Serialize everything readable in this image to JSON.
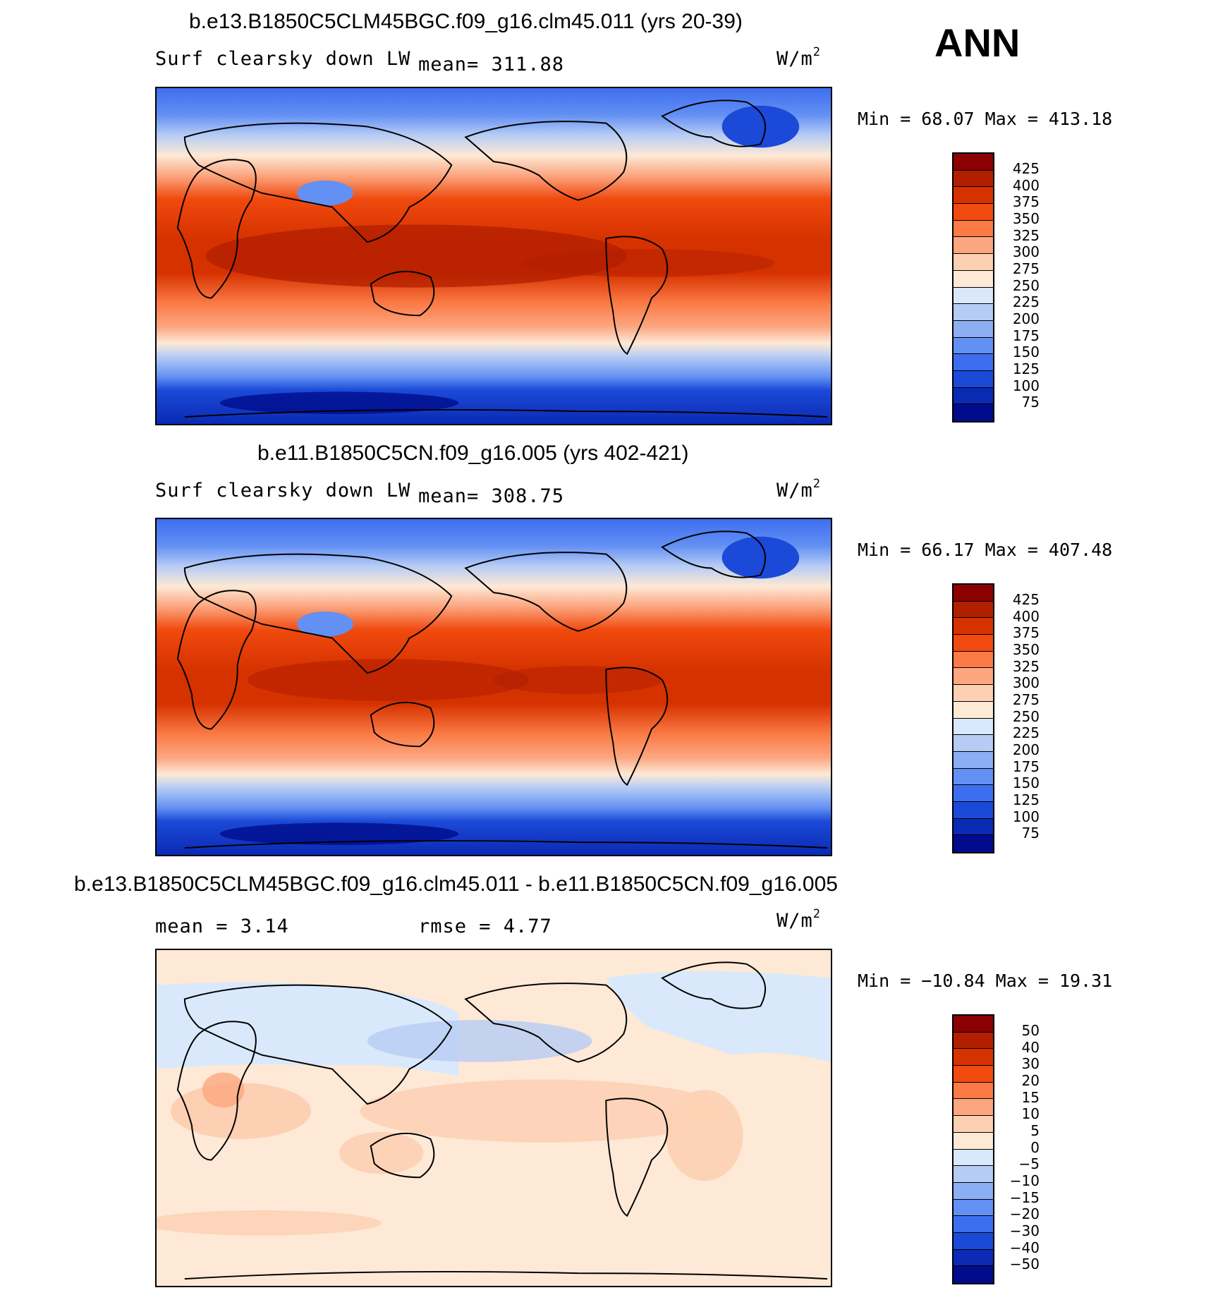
{
  "season": "ANN",
  "panels": [
    {
      "title": "b.e13.B1850C5CLM45BGC.f09_g16.clm45.011 (yrs 20-39)",
      "left_label": "Surf clearsky down LW",
      "center_label": "mean= 311.88",
      "units": "W/m",
      "units_exp": "2",
      "min_max": "Min =   68.07 Max = 413.18",
      "colorbar_labels": [
        "425",
        "400",
        "375",
        "350",
        "325",
        "300",
        "275",
        "250",
        "225",
        "200",
        "175",
        "150",
        "125",
        "100",
        "75"
      ],
      "colorbar_colors": [
        "#8b0000",
        "#b21e00",
        "#d63200",
        "#f04a0e",
        "#fb7a45",
        "#fca680",
        "#fdd0b4",
        "#fde9d6",
        "#d9e9fb",
        "#b6ccf5",
        "#8caef2",
        "#6390f3",
        "#3d6ef0",
        "#1b4ad8",
        "#0a2ab4",
        "#000c8c"
      ]
    },
    {
      "title": "b.e11.B1850C5CN.f09_g16.005 (yrs 402-421)",
      "left_label": "Surf clearsky down LW",
      "center_label": "mean= 308.75",
      "units": "W/m",
      "units_exp": "2",
      "min_max": "Min =   66.17 Max = 407.48",
      "colorbar_labels": [
        "425",
        "400",
        "375",
        "350",
        "325",
        "300",
        "275",
        "250",
        "225",
        "200",
        "175",
        "150",
        "125",
        "100",
        "75"
      ],
      "colorbar_colors": [
        "#8b0000",
        "#b21e00",
        "#d63200",
        "#f04a0e",
        "#fb7a45",
        "#fca680",
        "#fdd0b4",
        "#fde9d6",
        "#d9e9fb",
        "#b6ccf5",
        "#8caef2",
        "#6390f3",
        "#3d6ef0",
        "#1b4ad8",
        "#0a2ab4",
        "#000c8c"
      ]
    },
    {
      "title": "b.e13.B1850C5CLM45BGC.f09_g16.clm45.011 - b.e11.B1850C5CN.f09_g16.005",
      "left_label": "mean =    3.14",
      "center_label": "rmse =    4.77",
      "units": "W/m",
      "units_exp": "2",
      "min_max": "Min = −10.84 Max =   19.31",
      "colorbar_labels": [
        "50",
        "40",
        "30",
        "20",
        "15",
        "10",
        "5",
        "0",
        "−5",
        "−10",
        "−15",
        "−20",
        "−30",
        "−40",
        "−50"
      ],
      "colorbar_colors": [
        "#8b0000",
        "#b21e00",
        "#d63200",
        "#f04a0e",
        "#fb7a45",
        "#fca680",
        "#fdd0b4",
        "#fde9d6",
        "#d9e9fb",
        "#b6ccf5",
        "#8caef2",
        "#6390f3",
        "#3d6ef0",
        "#1b4ad8",
        "#0a2ab4",
        "#000c8c"
      ]
    }
  ]
}
